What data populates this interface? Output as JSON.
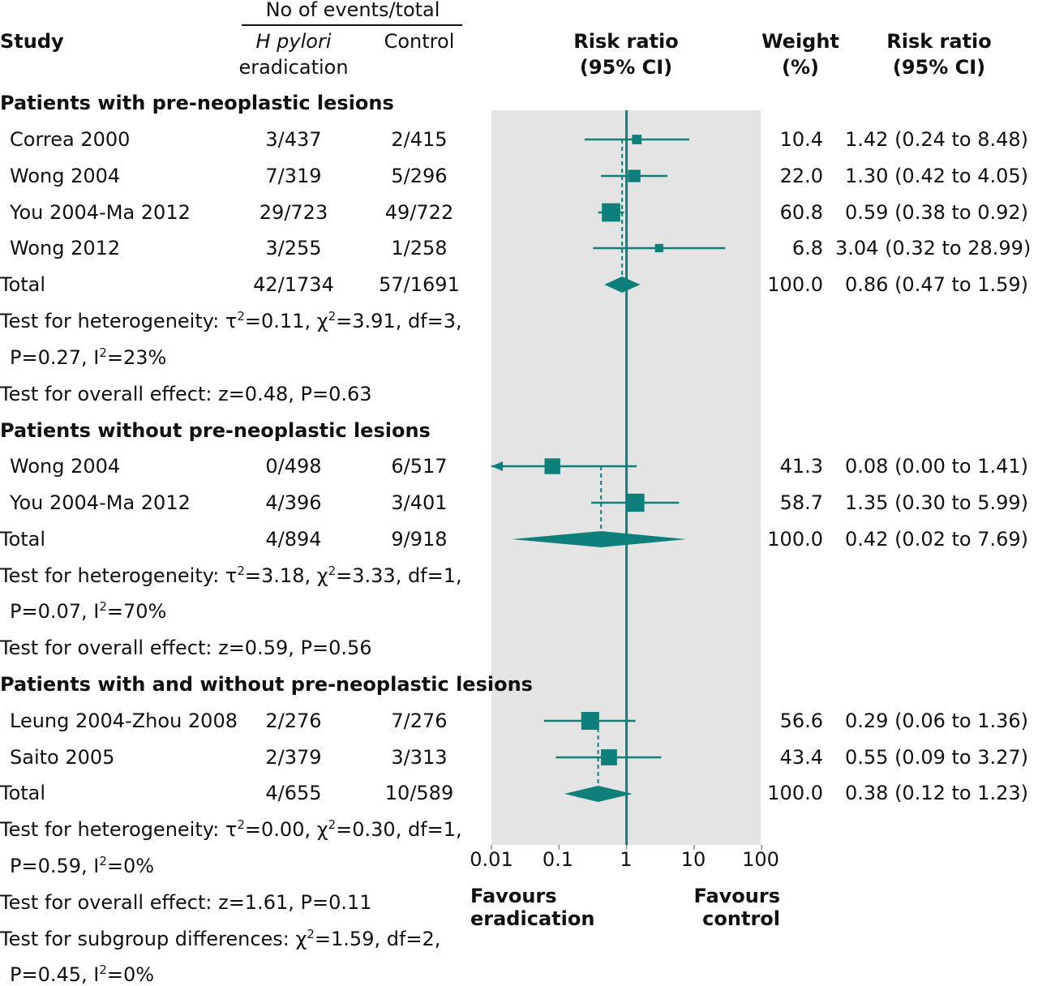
{
  "header": {
    "events_group": "No of events/total",
    "study": "Study",
    "treat_line1": "H pylori",
    "treat_line2": "eradication",
    "control": "Control",
    "rr_plot_line1": "Risk ratio",
    "rr_plot_line2": "(95% CI)",
    "weight_line1": "Weight",
    "weight_line2": "(%)",
    "rr_text_line1": "Risk ratio",
    "rr_text_line2": "(95% CI)"
  },
  "footer": {
    "favours_left_1": "Favours",
    "favours_left_2": "eradication",
    "favours_right_1": "Favours",
    "favours_right_2": "control"
  },
  "chart_data": {
    "type": "forest",
    "scale": "log",
    "xlim": [
      0.01,
      100
    ],
    "null_value": 1,
    "ticks": [
      {
        "value": 0.01,
        "label": "0.01"
      },
      {
        "value": 0.1,
        "label": "0.1"
      },
      {
        "value": 1,
        "label": "1"
      },
      {
        "value": 10,
        "label": "10"
      },
      {
        "value": 100,
        "label": "100"
      }
    ],
    "colors": {
      "marker": "#0f7f7b",
      "panel": "#e4e4e4"
    },
    "groups": [
      {
        "title": "Patients with pre-neoplastic lesions",
        "studies": [
          {
            "name": "Correa 2000",
            "treat": "3/437",
            "control": "2/415",
            "weight": "10.4",
            "ci_text": "1.42 (0.24 to 8.48)",
            "rr": 1.42,
            "lo": 0.24,
            "hi": 8.48
          },
          {
            "name": "Wong 2004",
            "treat": "7/319",
            "control": "5/296",
            "weight": "22.0",
            "ci_text": "1.30 (0.42 to 4.05)",
            "rr": 1.3,
            "lo": 0.42,
            "hi": 4.05
          },
          {
            "name": "You 2004-Ma 2012",
            "treat": "29/723",
            "control": "49/722",
            "weight": "60.8",
            "ci_text": "0.59 (0.38 to 0.92)",
            "rr": 0.59,
            "lo": 0.38,
            "hi": 0.92
          },
          {
            "name": "Wong 2012",
            "treat": "3/255",
            "control": "1/258",
            "weight": "6.8",
            "ci_text": "3.04 (0.32 to 28.99)",
            "rr": 3.04,
            "lo": 0.32,
            "hi": 28.99
          }
        ],
        "total": {
          "label": "Total",
          "treat": "42/1734",
          "control": "57/1691",
          "weight": "100.0",
          "ci_text": "0.86 (0.47 to 1.59)",
          "rr": 0.86,
          "lo": 0.47,
          "hi": 1.59
        },
        "het_1": {
          "pre": "Test for heterogeneity: τ",
          "a": "=0.11, χ",
          "b": "=3.91, df=3,"
        },
        "het_2": {
          "pre": "P=0.27, I",
          "a": "=23%"
        },
        "overall": "Test for overall effect: z=0.48, P=0.63"
      },
      {
        "title": "Patients without pre-neoplastic lesions",
        "studies": [
          {
            "name": "Wong 2004",
            "treat": "0/498",
            "control": "6/517",
            "weight": "41.3",
            "ci_text": "0.08 (0.00 to 1.41)",
            "rr": 0.08,
            "lo": 0.0,
            "hi": 1.41
          },
          {
            "name": "You 2004-Ma 2012",
            "treat": "4/396",
            "control": "3/401",
            "weight": "58.7",
            "ci_text": "1.35 (0.30 to 5.99)",
            "rr": 1.35,
            "lo": 0.3,
            "hi": 5.99
          }
        ],
        "total": {
          "label": "Total",
          "treat": "4/894",
          "control": "9/918",
          "weight": "100.0",
          "ci_text": "0.42 (0.02 to 7.69)",
          "rr": 0.42,
          "lo": 0.02,
          "hi": 7.69
        },
        "het_1": {
          "pre": "Test for heterogeneity: τ",
          "a": "=3.18, χ",
          "b": "=3.33, df=1,"
        },
        "het_2": {
          "pre": "P=0.07, I",
          "a": "=70%"
        },
        "overall": "Test for overall effect: z=0.59, P=0.56"
      },
      {
        "title": "Patients with and without pre-neoplastic lesions",
        "studies": [
          {
            "name": "Leung 2004-Zhou 2008",
            "treat": "2/276",
            "control": "7/276",
            "weight": "56.6",
            "ci_text": "0.29 (0.06 to 1.36)",
            "rr": 0.29,
            "lo": 0.06,
            "hi": 1.36
          },
          {
            "name": "Saito 2005",
            "treat": "2/379",
            "control": "3/313",
            "weight": "43.4",
            "ci_text": "0.55 (0.09 to 3.27)",
            "rr": 0.55,
            "lo": 0.09,
            "hi": 3.27
          }
        ],
        "total": {
          "label": "Total",
          "treat": "4/655",
          "control": "10/589",
          "weight": "100.0",
          "ci_text": "0.38 (0.12 to 1.23)",
          "rr": 0.38,
          "lo": 0.12,
          "hi": 1.23
        },
        "het_1": {
          "pre": "Test for heterogeneity: τ",
          "a": "=0.00, χ",
          "b": "=0.30, df=1,"
        },
        "het_2": {
          "pre": "P=0.59, I",
          "a": "=0%"
        },
        "overall": "Test for overall effect: z=1.61, P=0.11"
      }
    ],
    "subgroup_1": {
      "pre": "Test for subgroup differences: χ",
      "a": "=1.59, df=2,"
    },
    "subgroup_2": {
      "pre": "P=0.45, I",
      "a": "=0%"
    }
  }
}
